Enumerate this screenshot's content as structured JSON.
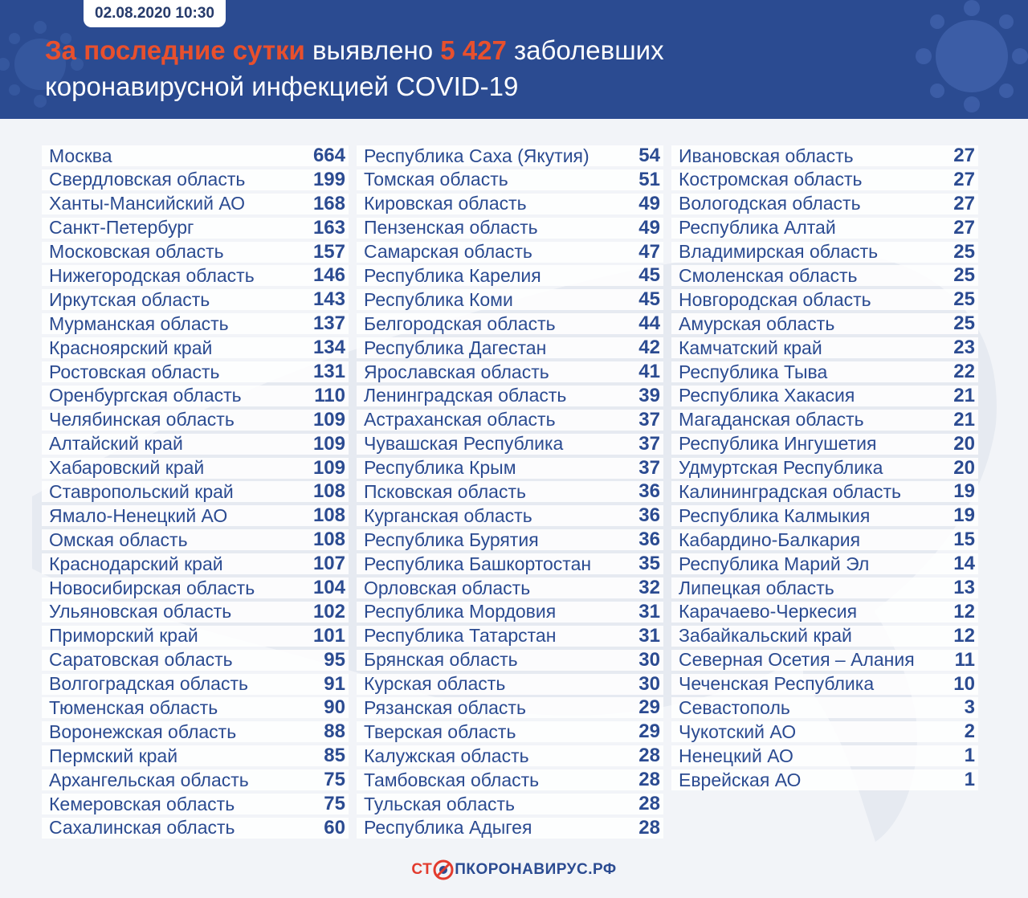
{
  "header": {
    "date": "02.08.2020 10:30",
    "headline_accent": "За последние сутки",
    "headline_mid": " выявлено ",
    "headline_count": "5 427",
    "headline_tail": " заболевших",
    "headline_line2": "коронавирусной инфекцией COVID-19"
  },
  "colors": {
    "header_bg": "#2b4b91",
    "accent": "#e8502d",
    "text": "#2b4b91"
  },
  "columns": [
    [
      {
        "name": "Москва",
        "value": "664"
      },
      {
        "name": "Свердловская область",
        "value": "199"
      },
      {
        "name": "Ханты-Мансийский АО",
        "value": "168"
      },
      {
        "name": "Санкт-Петербург",
        "value": "163"
      },
      {
        "name": "Московская область",
        "value": "157"
      },
      {
        "name": "Нижегородская область",
        "value": "146"
      },
      {
        "name": "Иркутская область",
        "value": "143"
      },
      {
        "name": "Мурманская область",
        "value": "137"
      },
      {
        "name": "Красноярский край",
        "value": "134"
      },
      {
        "name": "Ростовская область",
        "value": "131"
      },
      {
        "name": "Оренбургская область",
        "value": "110"
      },
      {
        "name": "Челябинская область",
        "value": "109"
      },
      {
        "name": "Алтайский край",
        "value": "109"
      },
      {
        "name": "Хабаровский край",
        "value": "109"
      },
      {
        "name": "Ставропольский край",
        "value": "108"
      },
      {
        "name": "Ямало-Ненецкий АО",
        "value": "108"
      },
      {
        "name": "Омская область",
        "value": "108"
      },
      {
        "name": "Краснодарский край",
        "value": "107"
      },
      {
        "name": "Новосибирская область",
        "value": "104"
      },
      {
        "name": "Ульяновская область",
        "value": "102"
      },
      {
        "name": "Приморский край",
        "value": "101"
      },
      {
        "name": "Саратовская область",
        "value": "95"
      },
      {
        "name": "Волгоградская область",
        "value": "91"
      },
      {
        "name": "Тюменская область",
        "value": "90"
      },
      {
        "name": "Воронежская область",
        "value": "88"
      },
      {
        "name": "Пермский край",
        "value": "85"
      },
      {
        "name": "Архангельская область",
        "value": "75"
      },
      {
        "name": "Кемеровская область",
        "value": "75"
      },
      {
        "name": "Сахалинская область",
        "value": "60"
      }
    ],
    [
      {
        "name": "Республика Саха (Якутия)",
        "value": "54"
      },
      {
        "name": "Томская область",
        "value": "51"
      },
      {
        "name": "Кировская область",
        "value": "49"
      },
      {
        "name": "Пензенская область",
        "value": "49"
      },
      {
        "name": "Самарская область",
        "value": "47"
      },
      {
        "name": "Республика Карелия",
        "value": "45"
      },
      {
        "name": "Республика Коми",
        "value": "45"
      },
      {
        "name": "Белгородская область",
        "value": "44"
      },
      {
        "name": "Республика Дагестан",
        "value": "42"
      },
      {
        "name": "Ярославская область",
        "value": "41"
      },
      {
        "name": "Ленинградская область",
        "value": "39"
      },
      {
        "name": "Астраханская область",
        "value": "37"
      },
      {
        "name": "Чувашская Республика",
        "value": "37"
      },
      {
        "name": "Республика Крым",
        "value": "37"
      },
      {
        "name": "Псковская область",
        "value": "36"
      },
      {
        "name": "Курганская область",
        "value": "36"
      },
      {
        "name": "Республика Бурятия",
        "value": "36"
      },
      {
        "name": "Республика Башкортостан",
        "value": "35"
      },
      {
        "name": "Орловская область",
        "value": "32"
      },
      {
        "name": "Республика Мордовия",
        "value": "31"
      },
      {
        "name": "Республика Татарстан",
        "value": "31"
      },
      {
        "name": "Брянская область",
        "value": "30"
      },
      {
        "name": "Курская область",
        "value": "30"
      },
      {
        "name": "Рязанская область",
        "value": "29"
      },
      {
        "name": "Тверская область",
        "value": "29"
      },
      {
        "name": "Калужская область",
        "value": "28"
      },
      {
        "name": "Тамбовская область",
        "value": "28"
      },
      {
        "name": "Тульская область",
        "value": "28"
      },
      {
        "name": "Республика Адыгея",
        "value": "28"
      }
    ],
    [
      {
        "name": "Ивановская область",
        "value": "27"
      },
      {
        "name": "Костромская область",
        "value": "27"
      },
      {
        "name": "Вологодская область",
        "value": "27"
      },
      {
        "name": "Республика Алтай",
        "value": "27"
      },
      {
        "name": "Владимирская область",
        "value": "25"
      },
      {
        "name": "Смоленская область",
        "value": "25"
      },
      {
        "name": "Новгородская область",
        "value": "25"
      },
      {
        "name": "Амурская область",
        "value": "25"
      },
      {
        "name": "Камчатский край",
        "value": "23"
      },
      {
        "name": "Республика Тыва",
        "value": "22"
      },
      {
        "name": "Республика Хакасия",
        "value": "21"
      },
      {
        "name": "Магаданская область",
        "value": "21"
      },
      {
        "name": "Республика Ингушетия",
        "value": "20"
      },
      {
        "name": "Удмуртская Республика",
        "value": "20"
      },
      {
        "name": "Калининградская область",
        "value": "19"
      },
      {
        "name": "Республика Калмыкия",
        "value": "19"
      },
      {
        "name": "Кабардино-Балкария",
        "value": "15"
      },
      {
        "name": "Республика Марий Эл",
        "value": "14"
      },
      {
        "name": "Липецкая область",
        "value": "13"
      },
      {
        "name": "Карачаево-Черкесия",
        "value": "12"
      },
      {
        "name": "Забайкальский край",
        "value": "12"
      },
      {
        "name": "Северная Осетия – Алания",
        "value": "11"
      },
      {
        "name": "Чеченская Республика",
        "value": "10"
      },
      {
        "name": "Севастополь",
        "value": "3"
      },
      {
        "name": "Чукотский АО",
        "value": "2"
      },
      {
        "name": "Ненецкий АО",
        "value": "1"
      },
      {
        "name": "Еврейская АО",
        "value": "1"
      }
    ]
  ],
  "footer": {
    "logo_part1": "СТ",
    "logo_part2": "ПКОРОНАВИРУС.РФ",
    "logo_icon": "virus-stop-icon"
  }
}
